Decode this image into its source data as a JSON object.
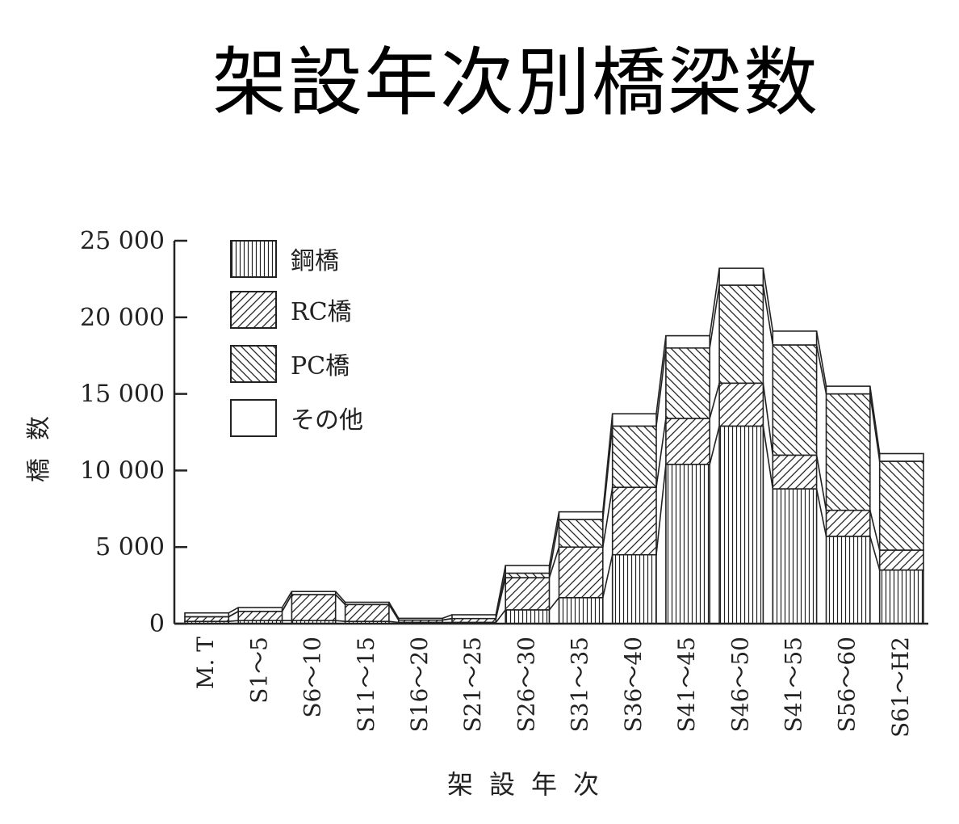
{
  "page": {
    "title": "架設年次別橋梁数"
  },
  "chart_data": {
    "type": "bar",
    "stacked": true,
    "title": "",
    "xlabel": "架設年次",
    "ylabel": "橋数",
    "ylim": [
      0,
      25000
    ],
    "yticks": [
      0,
      5000,
      10000,
      15000,
      20000,
      25000
    ],
    "ytick_labels": [
      "0",
      "5 000",
      "10 000",
      "15 000",
      "20 000",
      "25 000"
    ],
    "categories": [
      "M. T",
      "S1～5",
      "S6～10",
      "S11～15",
      "S16～20",
      "S21～25",
      "S26～30",
      "S31～35",
      "S36～40",
      "S41～45",
      "S46～50",
      "S41～55",
      "S56～60",
      "S61～H2"
    ],
    "series": [
      {
        "name": "鋼橋",
        "values": [
          150,
          200,
          200,
          150,
          80,
          80,
          900,
          1700,
          4500,
          10400,
          12900,
          8800,
          5700,
          3500
        ]
      },
      {
        "name": "RC橋",
        "values": [
          300,
          600,
          1700,
          1100,
          150,
          250,
          2100,
          3300,
          4400,
          3000,
          2800,
          2200,
          1700,
          1300
        ]
      },
      {
        "name": "PC橋",
        "values": [
          0,
          0,
          0,
          0,
          0,
          0,
          300,
          1800,
          4000,
          4600,
          6400,
          7200,
          7600,
          5800
        ]
      },
      {
        "name": "その他",
        "values": [
          250,
          250,
          200,
          150,
          120,
          250,
          500,
          500,
          800,
          800,
          1100,
          900,
          500,
          500
        ]
      }
    ],
    "legend_position": "top-left",
    "colors": {
      "ink": "#222222",
      "background": "#ffffff"
    }
  }
}
